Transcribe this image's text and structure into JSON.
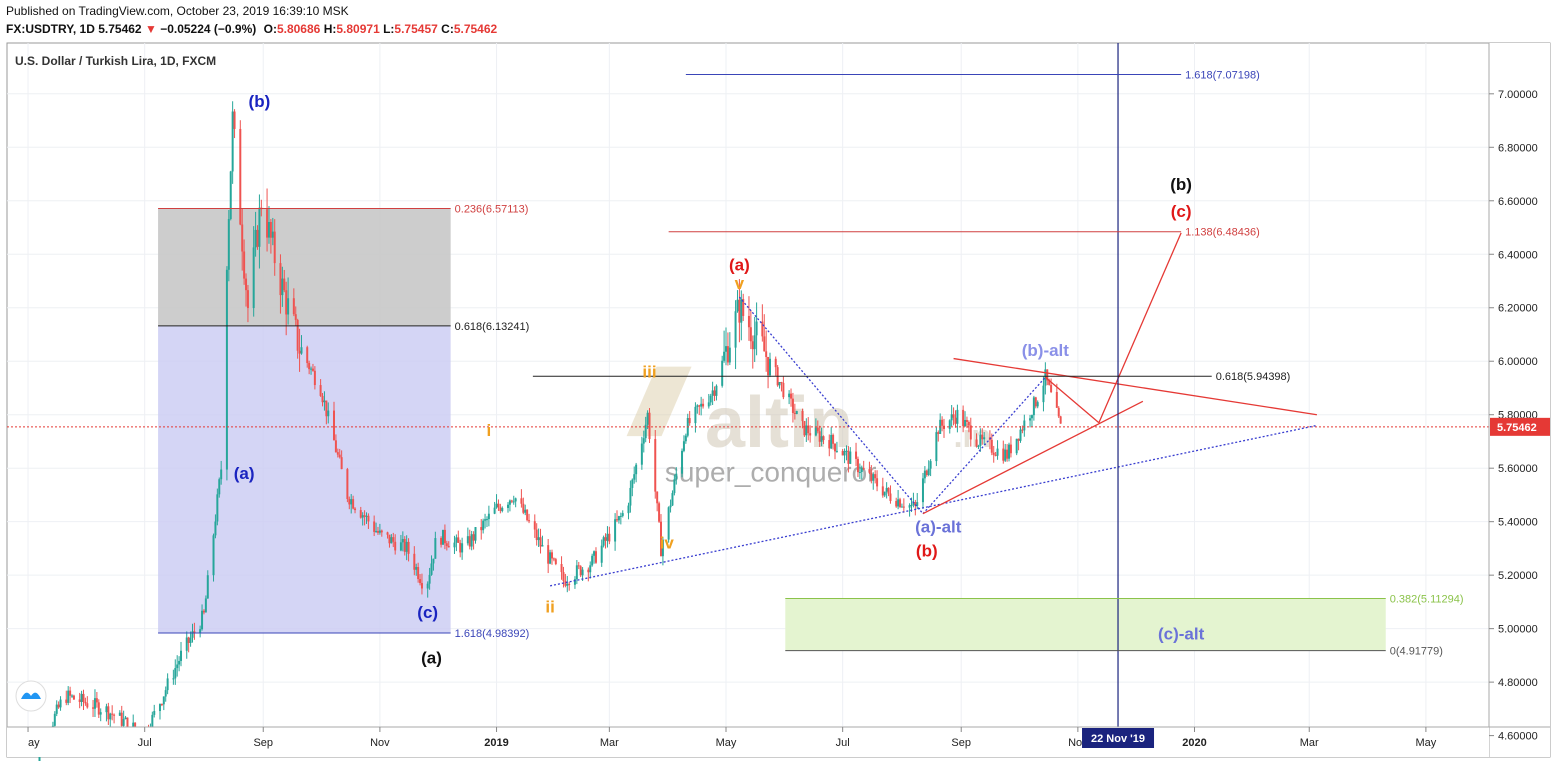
{
  "header": {
    "line1": "Published on TradingView.com, October 23, 2019 16:39:10 MSK",
    "symbol_prefix": "FX:USDTRY, 1D  5.75462",
    "change_arrow": "▼",
    "change_text": "−0.05224 (−0.9%)",
    "o_label": "O:",
    "o_value": "5.80686",
    "h_label": "H:",
    "h_value": "5.80971",
    "l_label": "L:",
    "l_value": "5.75457",
    "c_label": "C:",
    "c_value": "5.75462"
  },
  "chart_data": {
    "type": "line",
    "title": "U.S. Dollar / Turkish Lira, 1D, FXCM",
    "x_tick_labels": [
      "ay",
      "Jul",
      "Sep",
      "Nov",
      "2019",
      "Mar",
      "May",
      "Jul",
      "Sep",
      "Nov",
      "2020",
      "Mar",
      "May"
    ],
    "y_ticks": [
      "7.00000",
      "6.80000",
      "6.60000",
      "6.40000",
      "6.20000",
      "6.00000",
      "5.80000",
      "5.60000",
      "5.40000",
      "5.20000",
      "5.00000",
      "4.80000",
      "4.60000"
    ],
    "ylim": [
      4.52,
      7.19
    ],
    "last_price_label": "5.75462",
    "date_marker_label": "22 Nov '19",
    "series": [
      {
        "x": [
          "2018-05-01",
          "2018-05-20",
          "2018-06-10",
          "2018-07-01",
          "2018-07-20",
          "2018-08-01",
          "2018-08-10",
          "2018-08-13",
          "2018-08-16",
          "2018-08-24",
          "2018-08-31",
          "2018-09-10",
          "2018-09-20",
          "2018-10-01",
          "2018-10-15",
          "2018-11-01",
          "2018-11-15",
          "2018-11-25",
          "2018-12-01",
          "2018-12-15",
          "2019-01-01",
          "2019-01-10",
          "2019-01-25",
          "2019-02-05",
          "2019-02-20",
          "2019-03-10",
          "2019-03-21",
          "2019-03-28",
          "2019-04-10",
          "2019-04-25",
          "2019-05-08",
          "2019-05-20",
          "2019-06-10",
          "2019-06-25",
          "2019-07-10",
          "2019-07-25",
          "2019-08-08",
          "2019-08-20",
          "2019-08-30",
          "2019-09-10",
          "2019-09-25",
          "2019-10-10",
          "2019-10-15",
          "2019-10-23"
        ],
        "y": [
          4.45,
          4.75,
          4.7,
          4.6,
          4.9,
          5.05,
          5.6,
          6.4,
          6.9,
          6.2,
          6.6,
          6.3,
          6.05,
          5.9,
          5.5,
          5.35,
          5.3,
          5.15,
          5.35,
          5.3,
          5.45,
          5.5,
          5.3,
          5.18,
          5.25,
          5.45,
          5.8,
          5.3,
          5.75,
          5.9,
          6.2,
          6.05,
          5.75,
          5.7,
          5.6,
          5.5,
          5.45,
          5.75,
          5.8,
          5.7,
          5.65,
          5.85,
          5.94,
          5.75
        ]
      }
    ],
    "fib_levels": [
      {
        "label": "1.618(7.07198)",
        "value": 7.07198,
        "color": "#3a45b8"
      },
      {
        "label": "0.236(6.57113)",
        "value": 6.57113,
        "color": "#d04040"
      },
      {
        "label": "1.138(6.48436)",
        "value": 6.48436,
        "color": "#d04040"
      },
      {
        "label": "0.618(6.13241)",
        "value": 6.13241,
        "color": "#222222"
      },
      {
        "label": "0.618(5.94398)",
        "value": 5.94398,
        "color": "#222222"
      },
      {
        "label": "0.382(5.11294)",
        "value": 5.11294,
        "color": "#8bc34a"
      },
      {
        "label": "1.618(4.98392)",
        "value": 4.98392,
        "color": "#3a45b8"
      },
      {
        "label": "0(4.91779)",
        "value": 4.91779,
        "color": "#555555"
      }
    ],
    "annotations": {
      "blue": [
        "(b)",
        "(a)",
        "(c)"
      ],
      "black": [
        "(a)",
        "(b)"
      ],
      "orange": [
        "i",
        "ii",
        "iii",
        "iv",
        "v"
      ],
      "red": [
        "(a)",
        "(b)",
        "(c)"
      ],
      "alt": [
        "(a)-alt",
        "(b)-alt",
        "(c)-alt"
      ]
    }
  },
  "watermark": {
    "brand": "altin",
    "suffix": ".in",
    "author": "super_conqueror"
  },
  "colors": {
    "up": "#26a69a",
    "down": "#ef5350",
    "blue_box": "#c9cbf3",
    "grey_box": "#c8c8c8",
    "green_box": "#e4f4d0",
    "price_line": "#e53935",
    "vertical_marker": "#1a237e"
  }
}
